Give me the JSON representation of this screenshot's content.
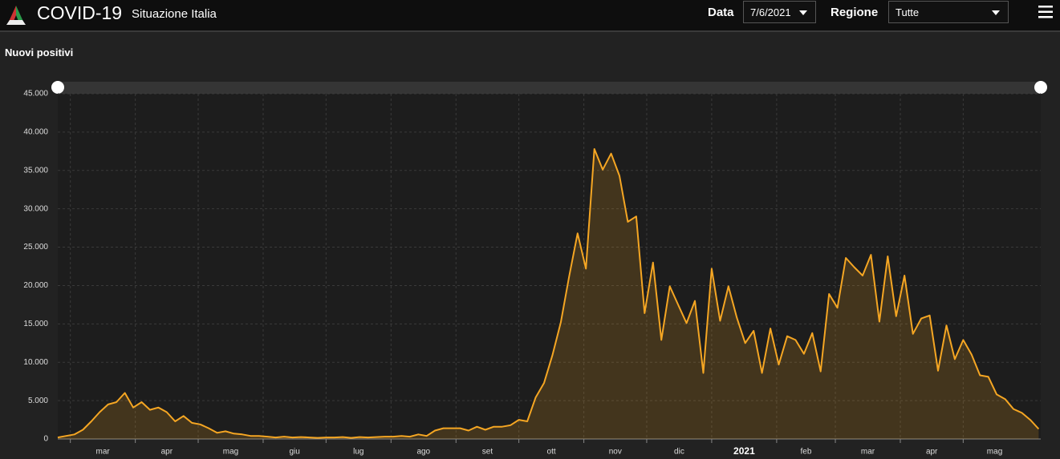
{
  "header": {
    "title": "COVID-19",
    "subtitle": "Situazione Italia",
    "date_label": "Data",
    "date_value": "7/6/2021",
    "region_label": "Regione",
    "region_value": "Tutte"
  },
  "chart_data": {
    "type": "area",
    "title": "Nuovi positivi",
    "color": "#f5a623",
    "grid": true,
    "x": [
      0,
      4,
      8,
      12,
      16,
      20,
      24,
      28,
      32,
      36,
      40,
      44,
      48,
      52,
      56,
      60,
      64,
      68,
      72,
      76,
      80,
      84,
      88,
      92,
      96,
      100,
      104,
      108,
      112,
      116,
      120,
      124,
      128,
      132,
      136,
      140,
      144,
      148,
      152,
      156,
      160,
      164,
      168,
      172,
      176,
      180,
      184,
      188,
      192,
      196,
      200,
      204,
      208,
      212,
      216,
      220,
      224,
      228,
      232,
      236,
      240,
      244,
      248,
      252,
      256,
      260,
      264,
      268,
      272,
      276,
      280,
      284,
      288,
      292,
      296,
      300,
      304,
      308,
      312,
      316,
      320,
      324,
      328,
      332,
      336,
      340,
      344,
      348,
      352,
      356,
      360,
      364,
      368,
      372,
      376,
      380,
      384,
      388,
      392,
      396,
      400,
      404,
      408,
      412,
      416,
      420,
      424,
      428,
      432,
      436,
      440,
      444,
      448,
      452,
      456,
      460,
      464,
      468
    ],
    "series": [
      {
        "name": "Nuovi positivi",
        "color": "#f5a623",
        "values": [
          200,
          400,
          600,
          1200,
          2300,
          3500,
          4500,
          4800,
          6000,
          4100,
          4800,
          3800,
          4100,
          3500,
          2300,
          3000,
          2100,
          1900,
          1400,
          800,
          1000,
          700,
          600,
          400,
          400,
          300,
          200,
          300,
          200,
          250,
          200,
          150,
          200,
          200,
          250,
          150,
          250,
          200,
          250,
          300,
          300,
          400,
          300,
          600,
          400,
          1100,
          1400,
          1400,
          1400,
          1100,
          1600,
          1200,
          1600,
          1600,
          1800,
          2500,
          2300,
          5400,
          7300,
          10900,
          15200,
          21200,
          26800,
          22200,
          37800,
          35100,
          37200,
          34300,
          28300,
          29000,
          16400,
          23000,
          12900,
          19900,
          17500,
          15100,
          18000,
          8600,
          22200,
          15400,
          19900,
          15800,
          12500,
          14100,
          8600,
          14400,
          9700,
          13400,
          12900,
          11100,
          13800,
          8800,
          18900,
          17100,
          23600,
          22400,
          21300,
          24000,
          15300,
          23800,
          16000,
          21300,
          13700,
          15700,
          16100,
          8900,
          14800,
          10400,
          12900,
          11000,
          8300,
          8100,
          5800,
          5200,
          3900,
          3400,
          2500,
          1300
        ]
      }
    ],
    "xlim": [
      0,
      469
    ],
    "xticks": [
      {
        "value": 6,
        "label": "mar"
      },
      {
        "value": 37,
        "label": "apr"
      },
      {
        "value": 67,
        "label": "mag"
      },
      {
        "value": 98,
        "label": "giu"
      },
      {
        "value": 128,
        "label": "lug"
      },
      {
        "value": 159,
        "label": "ago"
      },
      {
        "value": 190,
        "label": "set"
      },
      {
        "value": 220,
        "label": "ott"
      },
      {
        "value": 251,
        "label": "nov"
      },
      {
        "value": 281,
        "label": "dic"
      },
      {
        "value": 312,
        "label": "2021"
      },
      {
        "value": 343,
        "label": "feb"
      },
      {
        "value": 371,
        "label": "mar"
      },
      {
        "value": 402,
        "label": "apr"
      },
      {
        "value": 432,
        "label": "mag"
      }
    ],
    "ylim": [
      0,
      45000
    ],
    "yticks": [
      0,
      {
        "value": 5000,
        "label": "5.000"
      },
      {
        "value": 10000,
        "label": "10.000"
      },
      {
        "value": 15000,
        "label": "15.000"
      },
      {
        "value": 20000,
        "label": "20.000"
      },
      {
        "value": 25000,
        "label": "25.000"
      },
      {
        "value": 30000,
        "label": "30.000"
      },
      {
        "value": 35000,
        "label": "35.000"
      },
      {
        "value": 40000,
        "label": "40.000"
      },
      {
        "value": 45000,
        "label": "45.000"
      }
    ]
  }
}
